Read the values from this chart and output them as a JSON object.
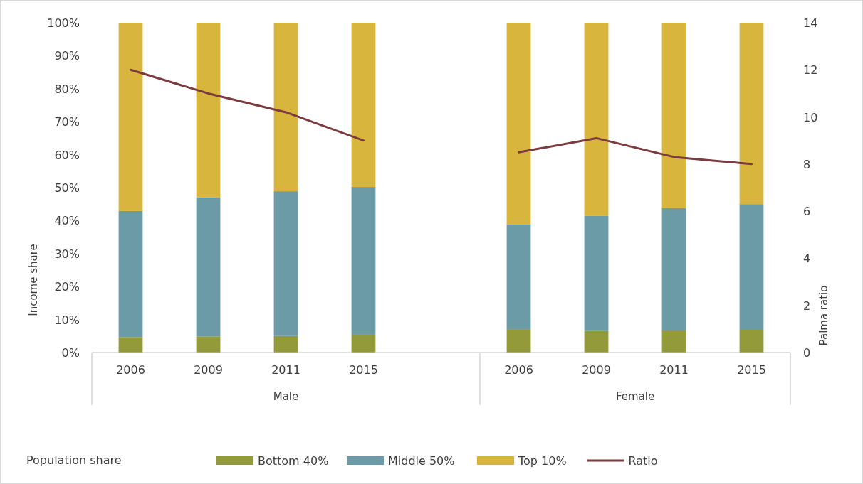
{
  "chart_data": {
    "type": "bar",
    "stacked": true,
    "categories": [
      "2006",
      "2009",
      "2011",
      "2015",
      null,
      "2006",
      "2009",
      "2011",
      "2015"
    ],
    "series": [
      {
        "name": "Bottom 40%",
        "color": "#939a3a",
        "values": [
          4.7,
          4.9,
          5,
          5.4,
          null,
          7.1,
          6.5,
          6.7,
          6.9
        ]
      },
      {
        "name": "Middle 50%",
        "color": "#6b9ba6",
        "values": [
          38.2,
          42.1,
          43.9,
          44.8,
          null,
          31.7,
          34.9,
          37.1,
          38.1
        ]
      },
      {
        "name": "Top 10%",
        "color": "#d8b53c",
        "values": [
          57.1,
          53,
          51.1,
          49.8,
          null,
          61.2,
          58.6,
          56.2,
          55
        ]
      },
      {
        "name": "Ratio",
        "type": "line",
        "axis": "y2",
        "color": "#7b3b3f",
        "values": [
          12,
          11,
          10.2,
          9,
          null,
          8.5,
          9.1,
          8.3,
          8
        ]
      }
    ],
    "ylabel": "Income share",
    "y2label": "Palma ratio",
    "ylim": [
      0,
      100
    ],
    "yticks": [
      {
        "value": 0,
        "label": "0%"
      },
      {
        "value": 10,
        "label": "10%"
      },
      {
        "value": 20,
        "label": "20%"
      },
      {
        "value": 30,
        "label": "30%"
      },
      {
        "value": 40,
        "label": "40%"
      },
      {
        "value": 50,
        "label": "50%"
      },
      {
        "value": 60,
        "label": "60%"
      },
      {
        "value": 70,
        "label": "70%"
      },
      {
        "value": 80,
        "label": "80%"
      },
      {
        "value": 90,
        "label": "90%"
      },
      {
        "value": 100,
        "label": "100%"
      }
    ],
    "y2lim": [
      0,
      14
    ],
    "y2ticks": [
      0,
      2,
      4,
      6,
      8,
      10,
      12,
      14
    ],
    "annotations": [
      "Male",
      "Female"
    ],
    "legend": "bottom",
    "legend_title": "Population share",
    "grid": false,
    "marker": "none",
    "line_style": "solid"
  }
}
